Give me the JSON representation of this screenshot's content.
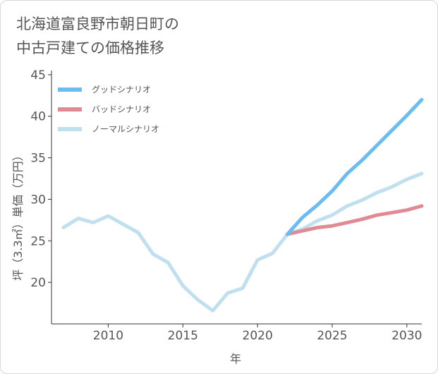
{
  "title": {
    "line1": "北海道富良野市朝日町の",
    "line2": "中古戸建ての価格推移"
  },
  "chart_data": {
    "type": "line",
    "title": "北海道富良野市朝日町の中古戸建ての価格推移",
    "xlabel": "年",
    "ylabel": "坪（3.3㎡）単価（万円）",
    "xlim": [
      2006.2,
      2031
    ],
    "ylim": [
      15,
      45.5
    ],
    "xticks": [
      2010,
      2015,
      2020,
      2025,
      2030
    ],
    "yticks": [
      20,
      25,
      30,
      35,
      40,
      45
    ],
    "grid": false,
    "legend_position": "top-left",
    "series": [
      {
        "name": "グッドシナリオ",
        "color": "#6bbcf0",
        "x": [
          2022,
          2023,
          2024,
          2025,
          2026,
          2027,
          2028,
          2029,
          2030,
          2031
        ],
        "y": [
          25.8,
          27.8,
          29.3,
          31.0,
          33.1,
          34.7,
          36.5,
          38.3,
          40.1,
          42.0
        ]
      },
      {
        "name": "バッドシナリオ",
        "color": "#e08a93",
        "x": [
          2022,
          2023,
          2024,
          2025,
          2026,
          2027,
          2028,
          2029,
          2030,
          2031
        ],
        "y": [
          25.8,
          26.2,
          26.6,
          26.8,
          27.2,
          27.6,
          28.1,
          28.4,
          28.7,
          29.2
        ]
      },
      {
        "name": "ノーマルシナリオ",
        "color": "#c0e0f0",
        "x": [
          2007,
          2008,
          2009,
          2010,
          2011,
          2012,
          2013,
          2014,
          2015,
          2016,
          2017,
          2018,
          2019,
          2020,
          2021,
          2022,
          2023,
          2024,
          2025,
          2026,
          2027,
          2028,
          2029,
          2030,
          2031
        ],
        "y": [
          26.6,
          27.7,
          27.2,
          28.0,
          27.0,
          26.0,
          23.4,
          22.4,
          19.6,
          17.9,
          16.6,
          18.7,
          19.3,
          22.7,
          23.5,
          25.8,
          26.4,
          27.4,
          28.1,
          29.2,
          29.9,
          30.8,
          31.5,
          32.4,
          33.1
        ]
      }
    ]
  }
}
